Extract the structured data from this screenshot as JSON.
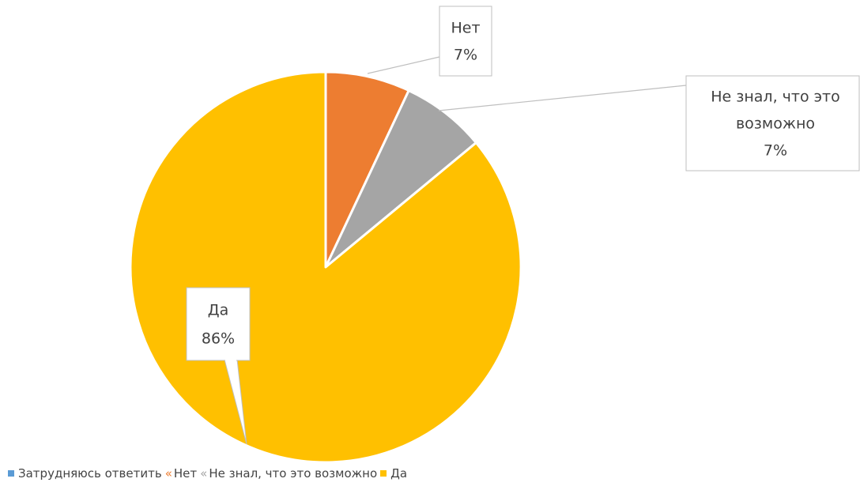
{
  "chart_data": {
    "type": "pie",
    "categories": [
      "Затрудняюсь ответить",
      "Нет",
      "Не знал, что это возможно",
      "Да"
    ],
    "values": [
      0,
      7,
      7,
      86
    ],
    "colors": [
      "#5b9bd5",
      "#ed7d31",
      "#a5a5a5",
      "#ffc000"
    ],
    "data_labels": [
      {
        "category": "Нет",
        "lines": [
          "Нет",
          "7%"
        ]
      },
      {
        "category": "Не знал, что это возможно",
        "lines": [
          "Не знал, что это",
          "возможно",
          "7%"
        ]
      },
      {
        "category": "Да",
        "lines": [
          "Да",
          "86%"
        ]
      }
    ],
    "legend": {
      "placement": "bottom-left",
      "entries": [
        {
          "label": "Затрудняюсь ответить",
          "marker": "square",
          "color": "#5b9bd5"
        },
        {
          "label": "Нет",
          "marker": "«",
          "color": "#ed7d31"
        },
        {
          "label": "Не знал, что это возможно",
          "marker": "«",
          "color": "#a5a5a5"
        },
        {
          "label": "Да",
          "marker": "square",
          "color": "#ffc000"
        }
      ]
    }
  }
}
